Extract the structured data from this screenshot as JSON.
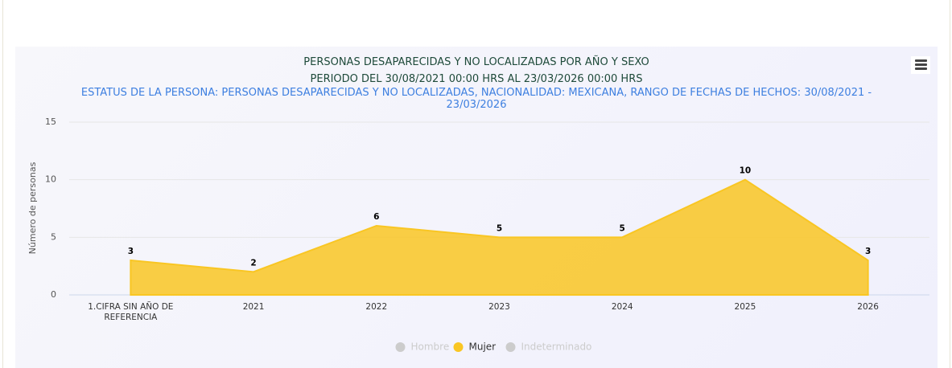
{
  "chart_data": {
    "type": "area",
    "title": "PERSONAS DESAPARECIDAS Y NO LOCALIZADAS POR AÑO Y SEXO",
    "title_line2": "PERIODO DEL 30/08/2021 00:00 HRS AL 23/03/2026 00:00 HRS",
    "subtitle": "ESTATUS DE LA PERSONA: PERSONAS DESAPARECIDAS Y NO LOCALIZADAS, NACIONALIDAD: MEXICANA, RANGO DE FECHAS DE HECHOS: 30/08/2021 - 23/03/2026",
    "y_label": "Número de personas",
    "categories": [
      "1.CIFRA SIN AÑO DE REFERENCIA",
      "2021",
      "2022",
      "2023",
      "2024",
      "2025",
      "2026"
    ],
    "series": [
      {
        "name": "Hombre",
        "visible": false
      },
      {
        "name": "Mujer",
        "color": "#f9c623",
        "visible": true,
        "values": [
          3,
          2,
          6,
          5,
          5,
          10,
          3
        ]
      },
      {
        "name": "Indeterminado",
        "visible": false
      }
    ],
    "ylim": [
      0,
      15
    ],
    "yticks": [
      0,
      5,
      10,
      15
    ],
    "grid": true
  }
}
